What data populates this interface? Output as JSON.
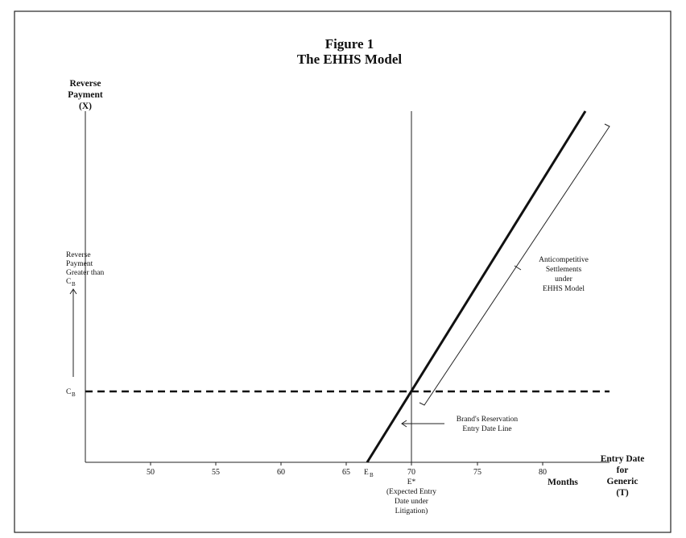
{
  "figure": {
    "title_line1": "Figure 1",
    "title_line2": "The EHHS Model"
  },
  "y_axis": {
    "label_line1": "Reverse",
    "label_line2": "Payment",
    "label_line3": "(X)"
  },
  "x_axis": {
    "label_line1": "Entry Date",
    "label_line2": "for",
    "label_line3": "Generic",
    "label_line4": "(T)",
    "unit": "Months",
    "ticks": [
      "50",
      "55",
      "60",
      "65",
      "70",
      "75",
      "80"
    ]
  },
  "labels": {
    "reverse_payment_greater": [
      "Reverse",
      "Payment",
      "Greater than",
      "C"
    ],
    "reverse_payment_greater_sub": "B",
    "cb_main": "C",
    "cb_sub": "B",
    "eb_main": "E",
    "eb_sub": "B",
    "estar": [
      "E*",
      "(Expected Entry",
      "Date under",
      "Litigation)"
    ],
    "reservation_line": [
      "Brand's Reservation",
      "Entry Date Line"
    ],
    "anticompetitive": [
      "Anticompetitive",
      "Settlements",
      "under",
      "EHHS Model"
    ]
  }
}
